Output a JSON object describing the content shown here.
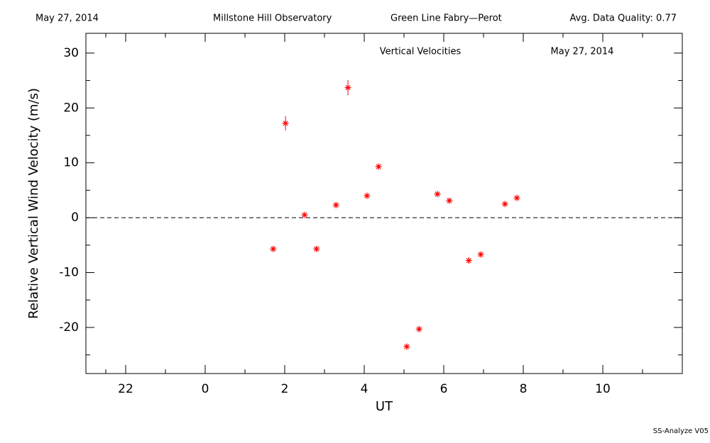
{
  "chart_data": {
    "type": "scatter",
    "header": [
      "May 27, 2014",
      "Millstone Hill Observatory",
      "Green Line Fabry—Perot",
      "Avg. Data Quality: 0.77"
    ],
    "title": "Vertical Velocities",
    "subtitle": "May 27, 2014",
    "footer": "SS-Analyze V05",
    "x_label": "UT",
    "y_label": "Relative Vertical Wind Velocity (m/s)",
    "x": [
      1.71,
      2.02,
      2.5,
      2.8,
      3.29,
      3.59,
      4.07,
      4.36,
      5.07,
      5.38,
      5.84,
      6.14,
      6.63,
      6.93,
      7.54,
      7.84
    ],
    "values": [
      -5.7,
      17.2,
      0.5,
      -5.7,
      2.3,
      23.7,
      4.0,
      9.3,
      -23.5,
      -20.3,
      4.3,
      3.1,
      -7.8,
      -6.7,
      2.5,
      3.6
    ],
    "errors": [
      0.4,
      1.3,
      0.4,
      0.4,
      0.4,
      1.4,
      0.4,
      0.4,
      0.4,
      0.4,
      0.4,
      0.4,
      0.4,
      0.4,
      0.4,
      0.4
    ],
    "color": "#ff0000",
    "xlim": [
      -3,
      12
    ],
    "xticks": [
      {
        "value": -2,
        "label": "22"
      },
      0,
      2,
      4,
      6,
      8,
      10
    ],
    "xminorticks": [
      -2.5,
      -1,
      1,
      3,
      5,
      7,
      9,
      11
    ],
    "ylim": [
      -28.4,
      33.6
    ],
    "yticks": [
      -20,
      -10,
      0,
      10,
      20,
      30
    ],
    "yminorticks": [
      -25,
      -15,
      -5,
      5,
      15,
      25
    ],
    "hline": 0
  }
}
